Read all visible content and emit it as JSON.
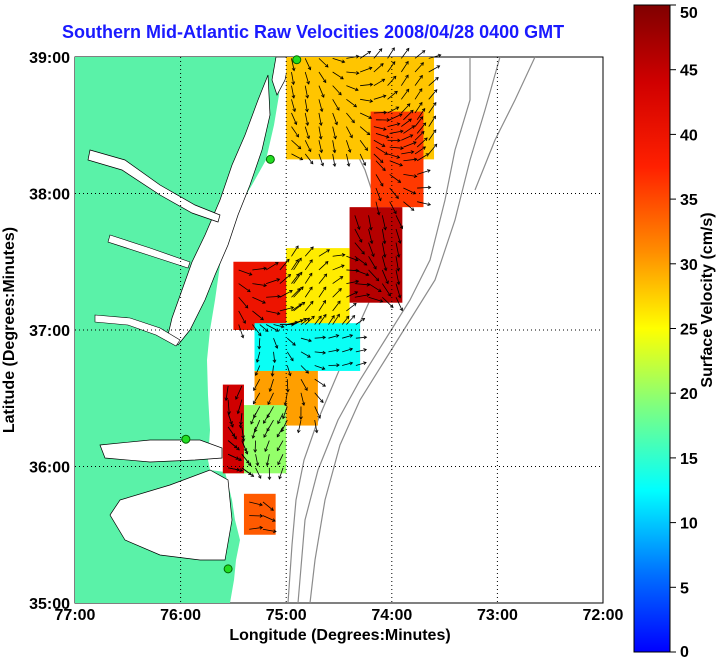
{
  "title": "Southern Mid-Atlantic Raw Velocities 2008/04/28 0400 GMT",
  "map": {
    "xlabel": "Longitude (Degrees:Minutes)",
    "ylabel": "Latitude (Degrees:Minutes)",
    "x_ticks": [
      "77:00",
      "76:00",
      "75:00",
      "74:00",
      "73:00",
      "72:00"
    ],
    "y_ticks": [
      "39:00",
      "38:00",
      "37:00",
      "36:00",
      "35:00"
    ],
    "lon_range": [
      -77,
      -72
    ],
    "lat_range": [
      35,
      39
    ],
    "grid": true,
    "land_color": "#5af2a8",
    "water_color": "#ffffff",
    "bathymetry_color": "#8c8c8c"
  },
  "colorbar": {
    "label": "Surface Velocity (cm/s)",
    "ticks": [
      "50",
      "45",
      "40",
      "35",
      "30",
      "25",
      "20",
      "15",
      "10",
      "5",
      "0"
    ],
    "range": [
      0,
      50
    ],
    "colormap": "jet"
  },
  "chart_data": {
    "type": "heatmap",
    "title": "Southern Mid-Atlantic Raw Velocities 2008/04/28 0400 GMT",
    "xlabel": "Longitude (Degrees:Minutes)",
    "ylabel": "Latitude (Degrees:Minutes)",
    "xlim": [
      -77,
      -72
    ],
    "ylim": [
      35,
      39
    ],
    "value_units": "cm/s",
    "value_range": [
      0,
      50
    ],
    "regions": [
      {
        "lon": [
          -75.0,
          -73.6
        ],
        "lat": [
          38.25,
          39.0
        ],
        "speed": 28
      },
      {
        "lon": [
          -74.2,
          -73.7
        ],
        "lat": [
          37.9,
          38.6
        ],
        "speed": 36
      },
      {
        "lon": [
          -74.4,
          -73.9
        ],
        "lat": [
          37.2,
          37.9
        ],
        "speed": 46
      },
      {
        "lon": [
          -75.5,
          -74.9
        ],
        "lat": [
          37.0,
          37.5
        ],
        "speed": 40
      },
      {
        "lon": [
          -75.0,
          -74.4
        ],
        "lat": [
          37.0,
          37.6
        ],
        "speed": 26
      },
      {
        "lon": [
          -75.3,
          -74.3
        ],
        "lat": [
          36.7,
          37.05
        ],
        "speed": 13
      },
      {
        "lon": [
          -75.3,
          -74.7
        ],
        "lat": [
          36.3,
          36.7
        ],
        "speed": 30
      },
      {
        "lon": [
          -75.6,
          -75.0
        ],
        "lat": [
          35.95,
          36.45
        ],
        "speed": 20
      },
      {
        "lon": [
          -75.6,
          -75.4
        ],
        "lat": [
          35.95,
          36.6
        ],
        "speed": 44
      },
      {
        "lon": [
          -75.4,
          -75.1
        ],
        "lat": [
          35.5,
          35.8
        ],
        "speed": 34
      }
    ],
    "station_markers": [
      {
        "lon": -74.9,
        "lat": 38.98
      },
      {
        "lon": -75.15,
        "lat": 38.25
      },
      {
        "lon": -75.95,
        "lat": 36.2
      },
      {
        "lon": -75.55,
        "lat": 35.25
      }
    ]
  }
}
